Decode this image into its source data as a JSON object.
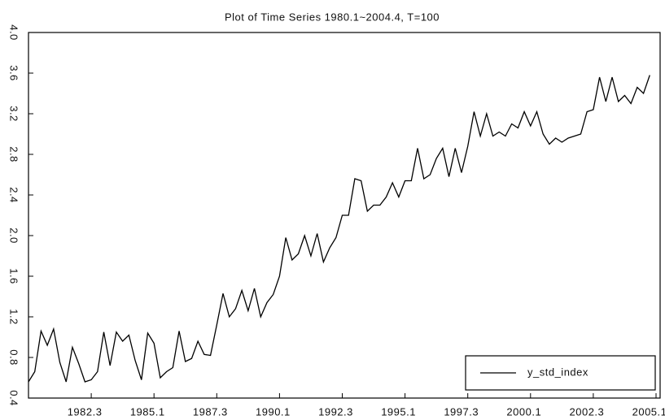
{
  "chart_data": {
    "type": "line",
    "title": "Plot of Time Series 1980.1~2004.4, T=100",
    "x": [
      1980,
      1980.25,
      1980.5,
      1980.75,
      1981,
      1981.25,
      1981.5,
      1981.75,
      1982,
      1982.25,
      1982.5,
      1982.75,
      1983,
      1983.25,
      1983.5,
      1983.75,
      1984,
      1984.25,
      1984.5,
      1984.75,
      1985,
      1985.25,
      1985.5,
      1985.75,
      1986,
      1986.25,
      1986.5,
      1986.75,
      1987,
      1987.25,
      1987.5,
      1987.75,
      1988,
      1988.25,
      1988.5,
      1988.75,
      1989,
      1989.25,
      1989.5,
      1989.75,
      1990,
      1990.25,
      1990.5,
      1990.75,
      1991,
      1991.25,
      1991.5,
      1991.75,
      1992,
      1992.25,
      1992.5,
      1992.75,
      1993,
      1993.25,
      1993.5,
      1993.75,
      1994,
      1994.25,
      1994.5,
      1994.75,
      1995,
      1995.25,
      1995.5,
      1995.75,
      1996,
      1996.25,
      1996.5,
      1996.75,
      1997,
      1997.25,
      1997.5,
      1997.75,
      1998,
      1998.25,
      1998.5,
      1998.75,
      1999,
      1999.25,
      1999.5,
      1999.75,
      2000,
      2000.25,
      2000.5,
      2000.75,
      2001,
      2001.25,
      2001.5,
      2001.75,
      2002,
      2002.25,
      2002.5,
      2002.75,
      2003,
      2003.25,
      2003.5,
      2003.75,
      2004,
      2004.25,
      2004.5,
      2004.75
    ],
    "series": [
      {
        "name": "y_std_index",
        "color": "#000000",
        "values": [
          0.56,
          0.66,
          1.06,
          0.92,
          1.08,
          0.75,
          0.56,
          0.9,
          0.74,
          0.56,
          0.58,
          0.66,
          1.05,
          0.72,
          1.05,
          0.96,
          1.02,
          0.77,
          0.58,
          1.04,
          0.94,
          0.6,
          0.66,
          0.7,
          1.06,
          0.76,
          0.79,
          0.96,
          0.83,
          0.82,
          1.12,
          1.43,
          1.2,
          1.28,
          1.46,
          1.26,
          1.48,
          1.2,
          1.34,
          1.42,
          1.6,
          1.98,
          1.76,
          1.82,
          2.0,
          1.8,
          2.02,
          1.74,
          1.88,
          1.98,
          2.2,
          2.2,
          2.56,
          2.54,
          2.24,
          2.3,
          2.3,
          2.38,
          2.52,
          2.38,
          2.54,
          2.54,
          2.86,
          2.56,
          2.6,
          2.76,
          2.86,
          2.58,
          2.86,
          2.62,
          2.88,
          3.22,
          2.98,
          3.2,
          2.98,
          3.02,
          2.98,
          3.1,
          3.06,
          3.22,
          3.08,
          3.22,
          3.0,
          2.9,
          2.96,
          2.92,
          2.96,
          2.98,
          3.0,
          3.22,
          3.24,
          3.56,
          3.32,
          3.56,
          3.32,
          3.38,
          3.3,
          3.46,
          3.4,
          3.58
        ]
      }
    ],
    "xlim": [
      1980,
      2005
    ],
    "xticks": [
      {
        "value": 1982.5,
        "label": "1982.3"
      },
      {
        "value": 1985,
        "label": "1985.1"
      },
      {
        "value": 1987.5,
        "label": "1987.3"
      },
      {
        "value": 1990,
        "label": "1990.1"
      },
      {
        "value": 1992.5,
        "label": "1992.3"
      },
      {
        "value": 1995,
        "label": "1995.1"
      },
      {
        "value": 1997.5,
        "label": "1997.3"
      },
      {
        "value": 2000,
        "label": "2000.1"
      },
      {
        "value": 2002.5,
        "label": "2002.3"
      },
      {
        "value": 2005,
        "label": "2005.1"
      }
    ],
    "ylim": [
      0.4,
      4.0
    ],
    "yticks": [
      0.4,
      0.8,
      1.2,
      1.6,
      {
        "value": 2,
        "label": "2.0"
      },
      2.4,
      2.8,
      3.2,
      3.6,
      {
        "value": 4,
        "label": "4.0"
      }
    ],
    "legend": "lower right",
    "grid": false
  }
}
